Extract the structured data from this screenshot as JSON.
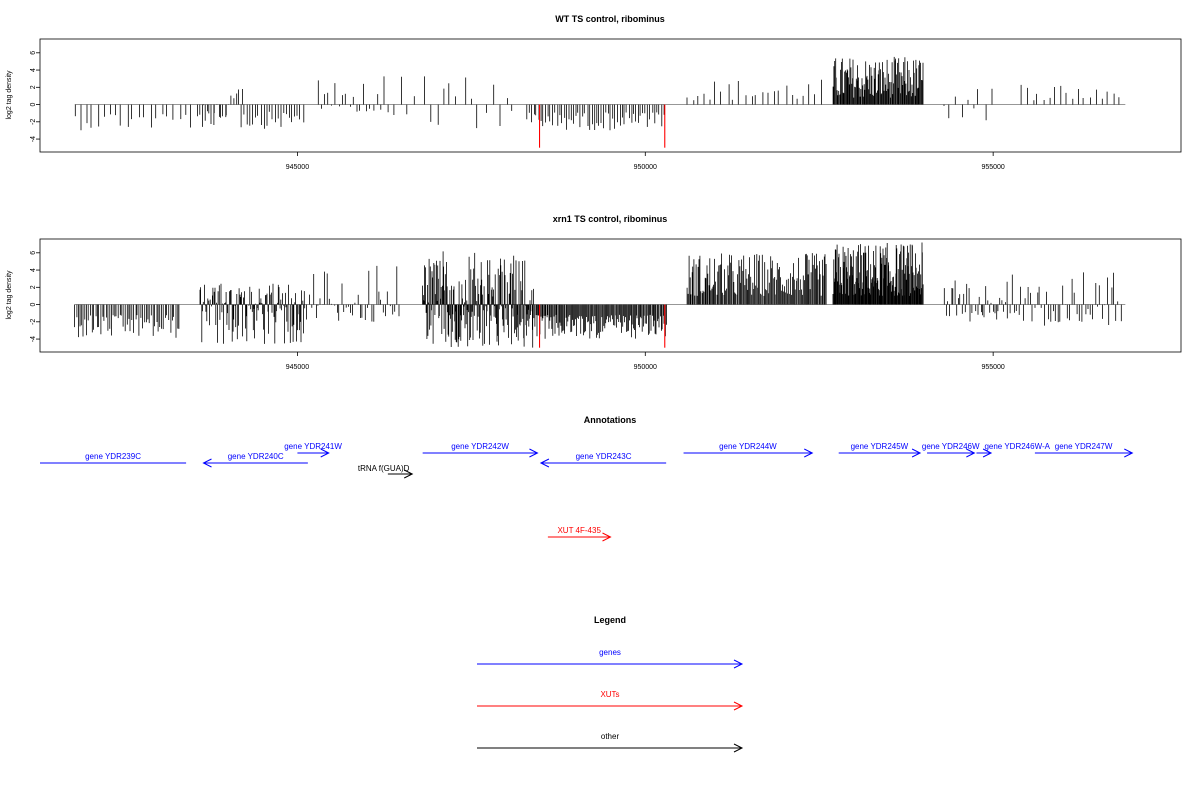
{
  "panels": [
    {
      "id": "wt",
      "title": "WT TS control, ribominus",
      "ylabel": "log2 tag density",
      "yticks": [
        -4,
        -2,
        0,
        2,
        4,
        6
      ],
      "xticks": [
        {
          "value": 945000,
          "label": "945000"
        },
        {
          "value": 950000,
          "label": "950000"
        },
        {
          "value": 955000,
          "label": "955000"
        }
      ],
      "xlim": [
        941300,
        957700
      ],
      "ylim": [
        -5.5,
        7.6
      ]
    },
    {
      "id": "xrn1",
      "title": "xrn1 TS control, ribominus",
      "ylabel": "log2 tag density",
      "yticks": [
        -4,
        -2,
        0,
        2,
        4,
        6
      ],
      "xticks": [
        {
          "value": 945000,
          "label": "945000"
        },
        {
          "value": 950000,
          "label": "950000"
        },
        {
          "value": 955000,
          "label": "955000"
        }
      ],
      "xlim": [
        941300,
        957700
      ],
      "ylim": [
        -5.5,
        7.6
      ]
    }
  ],
  "chart_data": {
    "type": "bar",
    "x_range": [
      941800,
      956900
    ],
    "series": [
      {
        "panel": "wt",
        "segments": [
          {
            "x0": 941800,
            "x1": 944000,
            "min": -3.0,
            "max": 0.0,
            "density": 0.012,
            "color": "#000000"
          },
          {
            "x0": 943600,
            "x1": 944200,
            "min": -2.8,
            "max": 2.6,
            "density": 0.025,
            "color": "#000000"
          },
          {
            "x0": 944200,
            "x1": 945100,
            "min": -2.8,
            "max": 0.0,
            "density": 0.025,
            "color": "#000000"
          },
          {
            "x0": 945300,
            "x1": 946300,
            "min": -1.0,
            "max": 3.5,
            "density": 0.02,
            "color": "#000000"
          },
          {
            "x0": 946400,
            "x1": 948100,
            "min": -3.0,
            "max": 3.3,
            "density": 0.01,
            "color": "#000000"
          },
          {
            "x0": 948300,
            "x1": 950300,
            "min": -3.0,
            "max": 0.0,
            "density": 0.03,
            "color": "#000000"
          },
          {
            "x0": 950600,
            "x1": 952600,
            "min": 0.5,
            "max": 3.0,
            "density": 0.012,
            "color": "#000000"
          },
          {
            "x0": 952700,
            "x1": 954000,
            "min": 0.8,
            "max": 5.6,
            "density": 0.09,
            "color": "#000000"
          },
          {
            "x0": 954300,
            "x1": 955000,
            "min": -2.0,
            "max": 2.5,
            "density": 0.012,
            "color": "#000000"
          },
          {
            "x0": 955400,
            "x1": 956900,
            "min": 0.5,
            "max": 2.6,
            "density": 0.012,
            "color": "#000000"
          }
        ],
        "highlights": [
          {
            "x": 948480,
            "y": -5.0,
            "color": "#ff0000"
          },
          {
            "x": 950280,
            "y": -5.0,
            "color": "#ff0000"
          }
        ]
      },
      {
        "panel": "xrn1",
        "segments": [
          {
            "x0": 941800,
            "x1": 943300,
            "min": -4.0,
            "max": 0.0,
            "density": 0.04,
            "color": "#000000"
          },
          {
            "x0": 943600,
            "x1": 945100,
            "min": -4.7,
            "max": 2.5,
            "density": 0.08,
            "color": "#000000"
          },
          {
            "x0": 945100,
            "x1": 946500,
            "min": -2.0,
            "max": 4.6,
            "density": 0.03,
            "color": "#000000"
          },
          {
            "x0": 946800,
            "x1": 948400,
            "min": -5.0,
            "max": 6.2,
            "density": 0.12,
            "color": "#000000"
          },
          {
            "x0": 948400,
            "x1": 950300,
            "min": -4.0,
            "max": 0.0,
            "density": 0.07,
            "color": "#000000"
          },
          {
            "x0": 950600,
            "x1": 952600,
            "min": 1.0,
            "max": 6.0,
            "density": 0.07,
            "color": "#000000"
          },
          {
            "x0": 952700,
            "x1": 954000,
            "min": 1.0,
            "max": 7.2,
            "density": 0.12,
            "color": "#000000"
          },
          {
            "x0": 954300,
            "x1": 955200,
            "min": -2.0,
            "max": 3.0,
            "density": 0.04,
            "color": "#000000"
          },
          {
            "x0": 955200,
            "x1": 956900,
            "min": -2.5,
            "max": 4.0,
            "density": 0.03,
            "color": "#000000"
          }
        ],
        "highlights": [
          {
            "x": 948480,
            "y": -5.0,
            "color": "#ff0000"
          },
          {
            "x": 950280,
            "y": -5.0,
            "color": "#ff0000"
          }
        ]
      }
    ]
  },
  "annotations": {
    "title": "Annotations",
    "features": [
      {
        "label": "gene YDR239C",
        "x0": 941300,
        "x1": 943400,
        "dir": "none",
        "row": "lower",
        "color": "#0000ff"
      },
      {
        "label": "gene YDR240C",
        "x0": 943650,
        "x1": 945150,
        "dir": "left",
        "row": "lower",
        "color": "#0000ff"
      },
      {
        "label": "gene YDR241W",
        "x0": 945000,
        "x1": 945450,
        "dir": "right",
        "row": "upper",
        "color": "#0000ff"
      },
      {
        "label": "tRNA f(GUA)D",
        "x0": 946300,
        "x1": 946650,
        "dir": "right",
        "row": "trna",
        "color": "#000000"
      },
      {
        "label": "gene YDR242W",
        "x0": 946800,
        "x1": 948450,
        "dir": "right",
        "row": "upper",
        "color": "#0000ff"
      },
      {
        "label": "gene YDR243C",
        "x0": 948500,
        "x1": 950300,
        "dir": "left",
        "row": "lower",
        "color": "#0000ff"
      },
      {
        "label": "gene YDR244W",
        "x0": 950550,
        "x1": 952400,
        "dir": "right",
        "row": "upper",
        "color": "#0000ff"
      },
      {
        "label": "gene YDR245W",
        "x0": 952780,
        "x1": 953950,
        "dir": "right",
        "row": "upper",
        "color": "#0000ff"
      },
      {
        "label": "gene YDR246W",
        "x0": 954050,
        "x1": 954730,
        "dir": "right",
        "row": "upper",
        "color": "#0000ff"
      },
      {
        "label": "gene YDR246W-A",
        "x0": 954760,
        "x1": 954970,
        "dir": "right",
        "row": "upper",
        "color": "#0000ff"
      },
      {
        "label": "gene YDR247W",
        "x0": 955600,
        "x1": 957000,
        "dir": "right",
        "row": "upper",
        "color": "#0000ff"
      },
      {
        "label": "XUT 4F-435",
        "x0": 948600,
        "x1": 949500,
        "dir": "right",
        "row": "xut",
        "color": "#ff0000"
      }
    ]
  },
  "legend": {
    "title": "Legend",
    "items": [
      {
        "label": "genes",
        "color": "#0000ff"
      },
      {
        "label": "XUTs",
        "color": "#ff0000"
      },
      {
        "label": "other",
        "color": "#000000"
      }
    ]
  }
}
